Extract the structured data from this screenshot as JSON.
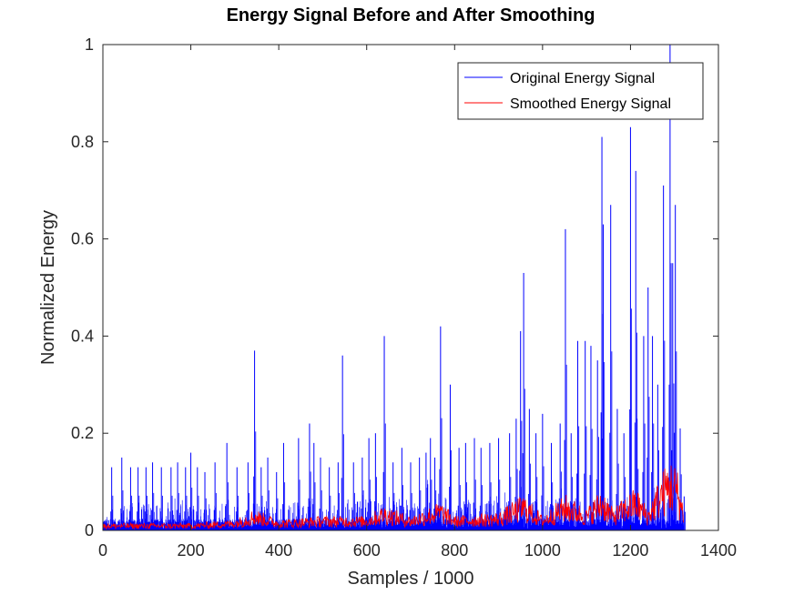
{
  "chart_data": {
    "type": "line",
    "title": "Energy Signal Before and After Smoothing",
    "xlabel": "Samples / 1000",
    "ylabel": "Normalized Energy",
    "xlim": [
      0,
      1400
    ],
    "ylim": [
      0,
      1
    ],
    "x_ticks": [
      "0",
      "200",
      "400",
      "600",
      "800",
      "1000",
      "1200",
      "1400"
    ],
    "y_ticks": [
      "0",
      "0.2",
      "0.4",
      "0.6",
      "0.8",
      "1"
    ],
    "grid": false,
    "legend_position": "top-right",
    "series": [
      {
        "name": "Original Energy Signal",
        "color": "#0000ff",
        "x": [
          20,
          43,
          63,
          80,
          98,
          113,
          133,
          155,
          170,
          188,
          200,
          215,
          232,
          255,
          282,
          305,
          330,
          345,
          360,
          375,
          395,
          411,
          445,
          470,
          480,
          495,
          515,
          535,
          545,
          570,
          590,
          605,
          620,
          640,
          660,
          680,
          700,
          720,
          735,
          745,
          755,
          768,
          790,
          810,
          825,
          845,
          860,
          880,
          900,
          925,
          940,
          950,
          957,
          970,
          985,
          1000,
          1020,
          1040,
          1052,
          1065,
          1080,
          1097,
          1110,
          1125,
          1135,
          1138,
          1155,
          1170,
          1185,
          1200,
          1212,
          1215,
          1230,
          1240,
          1250,
          1262,
          1275,
          1290,
          1296,
          1302,
          1313,
          1322
        ],
        "values": [
          0.13,
          0.15,
          0.13,
          0.13,
          0.13,
          0.14,
          0.13,
          0.13,
          0.14,
          0.13,
          0.16,
          0.13,
          0.12,
          0.14,
          0.18,
          0.13,
          0.14,
          0.37,
          0.13,
          0.15,
          0.12,
          0.18,
          0.19,
          0.22,
          0.18,
          0.15,
          0.13,
          0.14,
          0.36,
          0.14,
          0.15,
          0.19,
          0.2,
          0.4,
          0.14,
          0.17,
          0.14,
          0.15,
          0.16,
          0.19,
          0.15,
          0.42,
          0.3,
          0.17,
          0.18,
          0.19,
          0.17,
          0.18,
          0.19,
          0.2,
          0.23,
          0.41,
          0.53,
          0.25,
          0.2,
          0.24,
          0.18,
          0.22,
          0.62,
          0.2,
          0.39,
          0.39,
          0.38,
          0.35,
          0.81,
          0.63,
          0.67,
          0.25,
          0.2,
          0.83,
          0.74,
          0.23,
          0.4,
          0.5,
          0.4,
          0.3,
          0.71,
          1.0,
          0.55,
          0.67,
          0.21,
          0.07
        ]
      },
      {
        "name": "Smoothed Energy Signal",
        "color": "#ff0000",
        "x": [
          0,
          100,
          200,
          300,
          345,
          400,
          500,
          600,
          640,
          700,
          768,
          800,
          900,
          957,
          1000,
          1052,
          1100,
          1135,
          1160,
          1212,
          1240,
          1270,
          1290,
          1305,
          1322
        ],
        "values": [
          0.01,
          0.01,
          0.01,
          0.015,
          0.03,
          0.015,
          0.02,
          0.02,
          0.035,
          0.02,
          0.04,
          0.02,
          0.025,
          0.05,
          0.02,
          0.05,
          0.03,
          0.06,
          0.03,
          0.06,
          0.03,
          0.08,
          0.1,
          0.09,
          0.03
        ]
      }
    ]
  }
}
